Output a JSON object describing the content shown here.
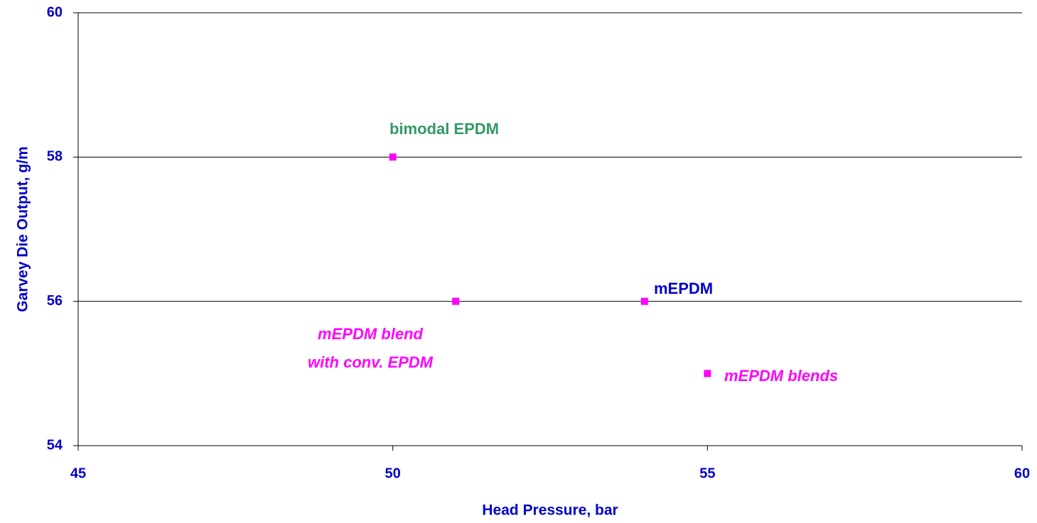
{
  "chart_data": {
    "type": "scatter",
    "x_label": "Head Pressure, bar",
    "y_label": "Garvey Die Output, g/m",
    "x": [
      50,
      51,
      54,
      55
    ],
    "values": [
      58,
      56,
      56,
      55
    ],
    "color": "#ff00ff",
    "xlim": [
      45,
      60
    ],
    "xticks": [
      45,
      50,
      55,
      60
    ],
    "ylim": [
      54,
      60
    ],
    "yticks": [
      54,
      56,
      58,
      60
    ],
    "grid": true,
    "annotations": [
      {
        "text": "bimodal EPDM",
        "color": "#339966",
        "italic": false
      },
      {
        "text": "mEPDM",
        "color": "#0000cc",
        "italic": false
      },
      {
        "text": "mEPDM blend",
        "color": "#ff00ff",
        "italic": true
      },
      {
        "text": "with conv. EPDM",
        "color": "#ff00ff",
        "italic": true
      },
      {
        "text": "mEPDM blends",
        "color": "#ff00ff",
        "italic": true
      }
    ]
  }
}
